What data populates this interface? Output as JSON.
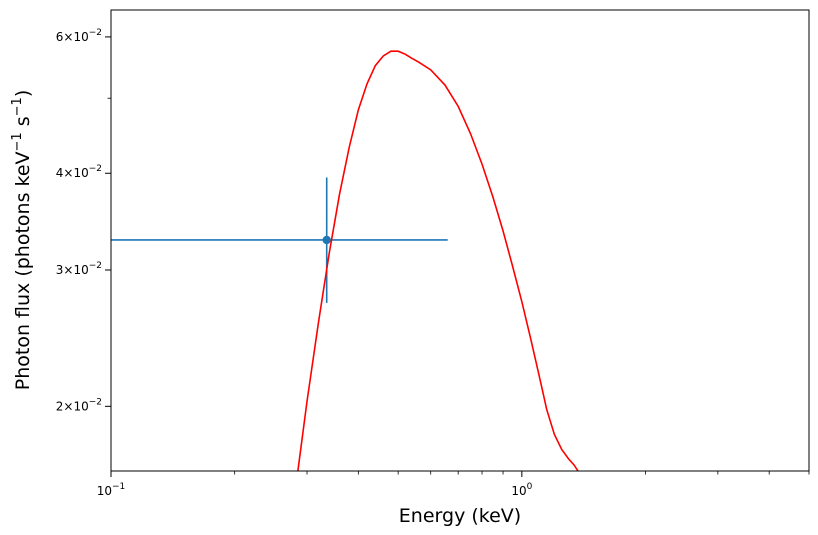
{
  "chart_data": {
    "type": "scatter",
    "title": "",
    "xlabel": "Energy (keV)",
    "ylabel": {
      "prefix": "Photon flux (photons keV",
      "sup1": "−1",
      "mid": " s",
      "sup2": "−1",
      "suffix": ")"
    },
    "xscale": "log",
    "yscale": "log",
    "xlim": [
      0.1,
      5.0
    ],
    "ylim": [
      0.0165,
      0.065
    ],
    "x_major_ticks": [
      {
        "value": 0.1,
        "base": "10",
        "exp": "−1"
      },
      {
        "value": 1.0,
        "base": "10",
        "exp": "0"
      }
    ],
    "y_major_ticks": [
      {
        "value": 0.02,
        "mantissa": "2",
        "exp": "−2"
      },
      {
        "value": 0.03,
        "mantissa": "3",
        "exp": "−2"
      },
      {
        "value": 0.04,
        "mantissa": "4",
        "exp": "−2"
      },
      {
        "value": 0.06,
        "mantissa": "6",
        "exp": "−2"
      }
    ],
    "y_minor_ticks": [
      0.05
    ],
    "grid": false,
    "legend": "none",
    "series": [
      {
        "kind": "errorbar",
        "color": "#1f77b4",
        "points": [
          {
            "x": 0.335,
            "y": 0.0328,
            "xerr": [
              0.1,
              0.66
            ],
            "yerr": [
              0.0272,
              0.0395
            ]
          }
        ]
      },
      {
        "kind": "line",
        "color": "#ff0000",
        "x": [
          0.285,
          0.3,
          0.32,
          0.34,
          0.36,
          0.38,
          0.4,
          0.42,
          0.44,
          0.46,
          0.48,
          0.5,
          0.52,
          0.54,
          0.56,
          0.6,
          0.65,
          0.7,
          0.75,
          0.8,
          0.85,
          0.9,
          0.95,
          1.0,
          1.05,
          1.1,
          1.15,
          1.2,
          1.25,
          1.3,
          1.34,
          1.37
        ],
        "y": [
          0.0165,
          0.0203,
          0.0257,
          0.0316,
          0.0376,
          0.0432,
          0.0483,
          0.0522,
          0.0551,
          0.0567,
          0.0575,
          0.0575,
          0.057,
          0.0563,
          0.0557,
          0.0544,
          0.052,
          0.0488,
          0.045,
          0.0411,
          0.0373,
          0.0337,
          0.0303,
          0.0273,
          0.0245,
          0.022,
          0.0198,
          0.0184,
          0.0176,
          0.0171,
          0.0168,
          0.0165
        ]
      }
    ]
  }
}
